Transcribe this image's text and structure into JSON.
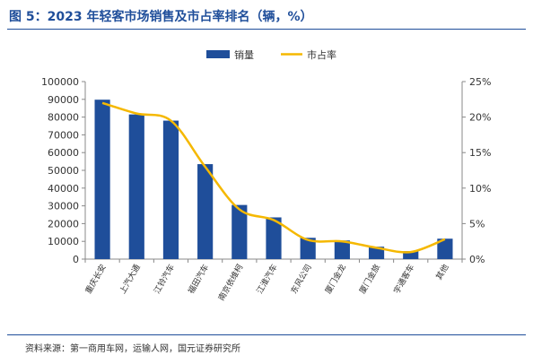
{
  "figure": {
    "title": "图 5：2023 年轻客市场销售及市占率排名（辆，%）",
    "source": "资料来源：第一商用车网，运输人网，国元证券研究所"
  },
  "colors": {
    "bar": "#1f4e9a",
    "line": "#f5b800",
    "title": "#1f4e9a"
  },
  "chart_data": {
    "type": "bar",
    "categories": [
      "重庆长安",
      "上汽大通",
      "江铃汽车",
      "福田汽车",
      "南京依维柯",
      "江淮汽车",
      "东风公司",
      "厦门金龙",
      "厦门金旅",
      "宇通客车",
      "其他"
    ],
    "series": [
      {
        "name": "销量",
        "type": "bar",
        "axis": "left",
        "values": [
          89800,
          81500,
          78000,
          53500,
          30500,
          23500,
          12000,
          10500,
          7000,
          4500,
          11500
        ]
      },
      {
        "name": "市占率",
        "type": "line",
        "axis": "right",
        "values": [
          22.0,
          20.5,
          19.5,
          13.0,
          7.0,
          5.5,
          2.7,
          2.5,
          1.6,
          1.0,
          2.8
        ]
      }
    ],
    "y_left": {
      "ylim": [
        0,
        100000
      ],
      "ticks": [
        "0",
        "10000",
        "20000",
        "30000",
        "40000",
        "50000",
        "60000",
        "70000",
        "80000",
        "90000",
        "100000"
      ]
    },
    "y_right": {
      "ylim": [
        0,
        25
      ],
      "ticks": [
        "0%",
        "5%",
        "10%",
        "15%",
        "20%",
        "25%"
      ]
    },
    "legend": {
      "position": "top-center",
      "labels": [
        "销量",
        "市占率"
      ]
    },
    "grid": false
  }
}
